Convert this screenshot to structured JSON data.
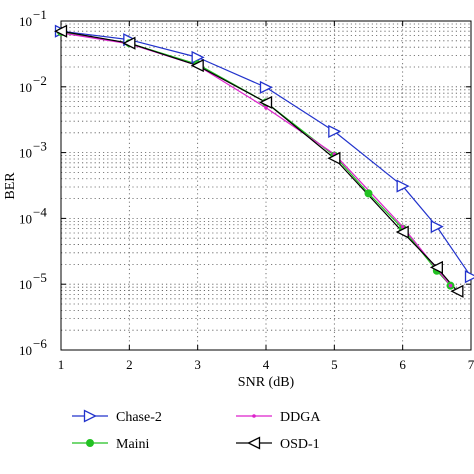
{
  "chart_data": {
    "type": "line",
    "title": "",
    "xlabel": "SNR (dB)",
    "ylabel": "BER",
    "xlim": [
      1,
      7
    ],
    "ylim": [
      1e-06,
      0.1
    ],
    "yscale": "log",
    "grid": true,
    "legend_position": "below",
    "x_ticks": [
      1,
      2,
      3,
      4,
      5,
      6,
      7
    ],
    "y_ticks": [
      {
        "value": 1e-06,
        "exp": "−6"
      },
      {
        "value": 1e-05,
        "exp": "−5"
      },
      {
        "value": 0.0001,
        "exp": "−4"
      },
      {
        "value": 0.001,
        "exp": "−3"
      },
      {
        "value": 0.01,
        "exp": "−2"
      },
      {
        "value": 0.1,
        "exp": "−1"
      }
    ],
    "y_tick_base": "10",
    "series": [
      {
        "name": "Chase-2",
        "color": "#2233cc",
        "marker": "triangle-right",
        "x": [
          1,
          2,
          3,
          4,
          5,
          6,
          6.5,
          7
        ],
        "y": [
          0.07,
          0.052,
          0.028,
          0.0098,
          0.0021,
          0.00031,
          7.5e-05,
          1.3e-05
        ]
      },
      {
        "name": "Maini",
        "color": "#22c122",
        "marker": "circle",
        "x": [
          1,
          2,
          3,
          4,
          5,
          5.5,
          6,
          6.5,
          6.7
        ],
        "y": [
          0.068,
          0.046,
          0.022,
          0.0058,
          0.0009,
          0.00024,
          7e-05,
          1.6e-05,
          9.5e-06
        ]
      },
      {
        "name": "DDGA",
        "color": "#dd22cc",
        "marker": "dot",
        "x": [
          1,
          2,
          3,
          4,
          5,
          6,
          6.5,
          6.7
        ],
        "y": [
          0.066,
          0.045,
          0.021,
          0.0048,
          0.00095,
          7.5e-05,
          1.7e-05,
          9.5e-06
        ]
      },
      {
        "name": "OSD-1",
        "color": "#000000",
        "marker": "triangle-left",
        "x": [
          1,
          2,
          3,
          4,
          5,
          6,
          6.5,
          6.8
        ],
        "y": [
          0.07,
          0.046,
          0.021,
          0.0058,
          0.00082,
          6.2e-05,
          1.8e-05,
          7.8e-06
        ]
      }
    ]
  }
}
